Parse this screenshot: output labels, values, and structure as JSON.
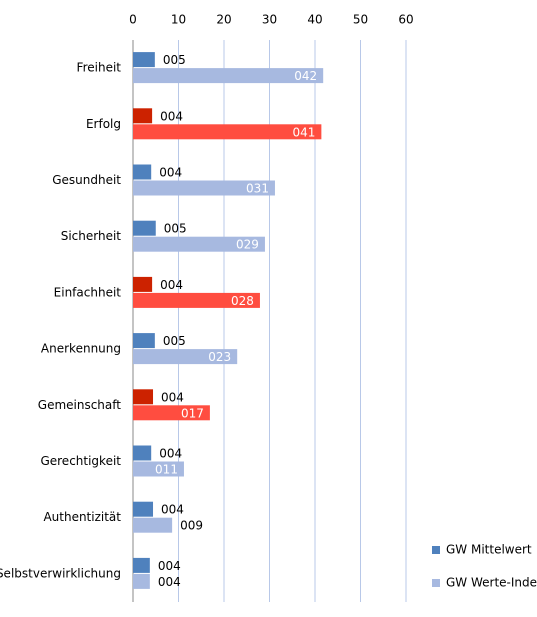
{
  "chart_data": {
    "type": "hbar",
    "categories": [
      "Freiheit",
      "Erfolg",
      "Gesundheit",
      "Sicherheit",
      "Einfachheit",
      "Anerkennung",
      "Gemeinschaft",
      "Gerechtigkeit",
      "Authentizität",
      "Selbstverwirklichung"
    ],
    "series": [
      {
        "name": "GW Mittelwert",
        "color": "#4f81bd",
        "colors": [
          "#4f81bd",
          "#cc2200",
          "#4f81bd",
          "#4f81bd",
          "#cc2200",
          "#4f81bd",
          "#cc2200",
          "#4f81bd",
          "#4f81bd",
          "#4f81bd"
        ],
        "values": [
          4.8,
          4.2,
          4.0,
          5.0,
          4.2,
          4.8,
          4.4,
          4.0,
          4.4,
          3.7
        ],
        "value_labels": [
          "005",
          "004",
          "004",
          "005",
          "004",
          "005",
          "004",
          "004",
          "004",
          "004"
        ]
      },
      {
        "name": "GW Werte-Index",
        "color": "#a7b9e0",
        "colors": [
          "#a7b9e0",
          "#ff4d40",
          "#a7b9e0",
          "#a7b9e0",
          "#ff4d40",
          "#a7b9e0",
          "#ff4d40",
          "#a7b9e0",
          "#a7b9e0",
          "#a7b9e0"
        ],
        "values": [
          41.8,
          41.4,
          31.2,
          29.0,
          27.9,
          22.9,
          16.9,
          11.2,
          8.6,
          3.7
        ],
        "value_labels": [
          "042",
          "041",
          "031",
          "029",
          "028",
          "023",
          "017",
          "011",
          "009",
          "004"
        ]
      }
    ],
    "xlim": [
      0,
      60
    ],
    "xticks": [
      0,
      10,
      20,
      30,
      40,
      50,
      60
    ],
    "grid": true,
    "legend": "bottom-right"
  }
}
